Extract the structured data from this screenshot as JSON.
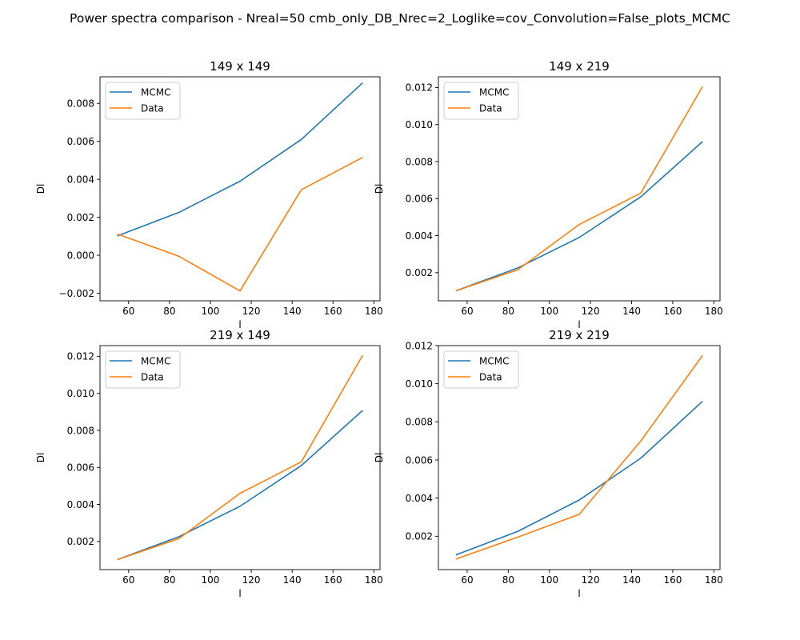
{
  "suptitle": "Power spectra comparison - Nreal=50 cmb_only_DB_Nrec=2_Loglike=cov_Convolution=False_plots_MCMC",
  "colors": {
    "mcmc": "#1f77b4",
    "data": "#ff7f0e"
  },
  "chart_data": [
    {
      "type": "line",
      "title": "149 x 149",
      "xlabel": "l",
      "ylabel": "Dl",
      "x": [
        54.5,
        84.5,
        114.5,
        144.5,
        174.5
      ],
      "xlim": [
        46,
        183
      ],
      "ylim": [
        -0.0024,
        0.0094
      ],
      "xticks": [
        60,
        80,
        100,
        120,
        140,
        160,
        180
      ],
      "xtick_labels": [
        "60",
        "80",
        "100",
        "120",
        "140",
        "160",
        "180"
      ],
      "yticks": [
        -0.002,
        0.0,
        0.002,
        0.004,
        0.006,
        0.008
      ],
      "ytick_labels": [
        "−0.002",
        "0.000",
        "0.002",
        "0.004",
        "0.006",
        "0.008"
      ],
      "legend": "top-left",
      "series": [
        {
          "name": "MCMC",
          "values": [
            0.00102,
            0.00225,
            0.0039,
            0.0061,
            0.00908
          ]
        },
        {
          "name": "Data",
          "values": [
            0.00112,
            -5e-05,
            -0.00188,
            0.00345,
            0.00515
          ]
        }
      ]
    },
    {
      "type": "line",
      "title": "149 x 219",
      "xlabel": "l",
      "ylabel": "Dl",
      "x": [
        54.5,
        84.5,
        114.5,
        144.5,
        174.5
      ],
      "xlim": [
        46,
        183
      ],
      "ylim": [
        0.00048,
        0.01258
      ],
      "xticks": [
        60,
        80,
        100,
        120,
        140,
        160,
        180
      ],
      "xtick_labels": [
        "60",
        "80",
        "100",
        "120",
        "140",
        "160",
        "180"
      ],
      "yticks": [
        0.002,
        0.004,
        0.006,
        0.008,
        0.01,
        0.012
      ],
      "ytick_labels": [
        "0.002",
        "0.004",
        "0.006",
        "0.008",
        "0.010",
        "0.012"
      ],
      "legend": "top-left",
      "series": [
        {
          "name": "MCMC",
          "values": [
            0.00102,
            0.00225,
            0.0039,
            0.0061,
            0.00908
          ]
        },
        {
          "name": "Data",
          "values": [
            0.00102,
            0.00215,
            0.0046,
            0.0063,
            0.01205
          ]
        }
      ]
    },
    {
      "type": "line",
      "title": "219 x 149",
      "xlabel": "l",
      "ylabel": "Dl",
      "x": [
        54.5,
        84.5,
        114.5,
        144.5,
        174.5
      ],
      "xlim": [
        46,
        183
      ],
      "ylim": [
        0.00048,
        0.01258
      ],
      "xticks": [
        60,
        80,
        100,
        120,
        140,
        160,
        180
      ],
      "xtick_labels": [
        "60",
        "80",
        "100",
        "120",
        "140",
        "160",
        "180"
      ],
      "yticks": [
        0.002,
        0.004,
        0.006,
        0.008,
        0.01,
        0.012
      ],
      "ytick_labels": [
        "0.002",
        "0.004",
        "0.006",
        "0.008",
        "0.010",
        "0.012"
      ],
      "legend": "top-left",
      "series": [
        {
          "name": "MCMC",
          "values": [
            0.00102,
            0.00225,
            0.0039,
            0.0061,
            0.00908
          ]
        },
        {
          "name": "Data",
          "values": [
            0.00102,
            0.00215,
            0.0046,
            0.0063,
            0.01205
          ]
        }
      ]
    },
    {
      "type": "line",
      "title": "219 x 219",
      "xlabel": "l",
      "ylabel": "Dl",
      "x": [
        54.5,
        84.5,
        114.5,
        144.5,
        174.5
      ],
      "xlim": [
        46,
        183
      ],
      "ylim": [
        0.00025,
        0.012
      ],
      "xticks": [
        60,
        80,
        100,
        120,
        140,
        160,
        180
      ],
      "xtick_labels": [
        "60",
        "80",
        "100",
        "120",
        "140",
        "160",
        "180"
      ],
      "yticks": [
        0.002,
        0.004,
        0.006,
        0.008,
        0.01,
        0.012
      ],
      "ytick_labels": [
        "0.002",
        "0.004",
        "0.006",
        "0.008",
        "0.010",
        "0.012"
      ],
      "legend": "top-left",
      "series": [
        {
          "name": "MCMC",
          "values": [
            0.00102,
            0.00225,
            0.0039,
            0.0061,
            0.00908
          ]
        },
        {
          "name": "Data",
          "values": [
            0.0008,
            0.00195,
            0.00315,
            0.007,
            0.01148
          ]
        }
      ]
    }
  ]
}
